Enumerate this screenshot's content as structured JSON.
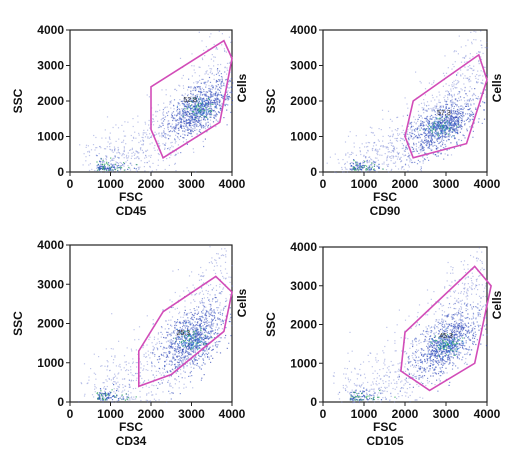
{
  "chart_data": [
    {
      "type": "scatter",
      "marker": "CD45",
      "xlabel": "FSC",
      "ylabel": "SSC",
      "gate_label": "Cells",
      "gate_percent": "52.8",
      "xlim": [
        0,
        4000
      ],
      "ylim": [
        0,
        4000
      ],
      "xticks": [
        "0",
        "1000",
        "2000",
        "3000",
        "4000"
      ],
      "yticks": [
        "0",
        "1000",
        "2000",
        "3000",
        "4000"
      ],
      "gate_polygon": [
        [
          2000,
          1200
        ],
        [
          2000,
          2400
        ],
        [
          3800,
          3700
        ],
        [
          4000,
          3200
        ],
        [
          3700,
          1400
        ],
        [
          2300,
          400
        ]
      ],
      "cluster": {
        "cx": 3200,
        "cy": 1800,
        "spread": 1.0
      }
    },
    {
      "type": "scatter",
      "marker": "CD90",
      "xlabel": "FSC",
      "ylabel": "SSC",
      "gate_label": "Cells",
      "gate_percent": "57.3",
      "xlim": [
        0,
        4000
      ],
      "ylim": [
        0,
        4000
      ],
      "xticks": [
        "0",
        "1000",
        "2000",
        "3000",
        "4000"
      ],
      "yticks": [
        "0",
        "1000",
        "2000",
        "3000",
        "4000"
      ],
      "gate_polygon": [
        [
          2000,
          1000
        ],
        [
          2200,
          2000
        ],
        [
          3800,
          3300
        ],
        [
          4000,
          2600
        ],
        [
          3500,
          800
        ],
        [
          2200,
          400
        ]
      ],
      "cluster": {
        "cx": 2900,
        "cy": 1300,
        "spread": 1.0
      }
    },
    {
      "type": "scatter",
      "marker": "CD34",
      "xlabel": "FSC",
      "ylabel": "SSC",
      "gate_label": "Cells",
      "gate_percent": "25.3",
      "xlim": [
        0,
        4000
      ],
      "ylim": [
        0,
        4000
      ],
      "xticks": [
        "0",
        "1000",
        "2000",
        "3000",
        "4000"
      ],
      "yticks": [
        "0",
        "1000",
        "2000",
        "3000",
        "4000"
      ],
      "gate_polygon": [
        [
          1700,
          400
        ],
        [
          1700,
          1300
        ],
        [
          2300,
          2300
        ],
        [
          3600,
          3200
        ],
        [
          4000,
          2800
        ],
        [
          3800,
          1800
        ],
        [
          2500,
          700
        ]
      ],
      "cluster": {
        "cx": 3000,
        "cy": 1600,
        "spread": 1.2
      }
    },
    {
      "type": "scatter",
      "marker": "CD105",
      "xlabel": "FSC",
      "ylabel": "SSC",
      "gate_label": "Cells",
      "gate_percent": "45.3",
      "xlim": [
        0,
        4000
      ],
      "ylim": [
        0,
        4000
      ],
      "xticks": [
        "0",
        "1000",
        "2000",
        "3000",
        "4000"
      ],
      "yticks": [
        "0",
        "1000",
        "2000",
        "3000",
        "4000"
      ],
      "gate_polygon": [
        [
          1900,
          800
        ],
        [
          2000,
          1800
        ],
        [
          3700,
          3500
        ],
        [
          4100,
          3000
        ],
        [
          3700,
          1000
        ],
        [
          2600,
          300
        ]
      ],
      "cluster": {
        "cx": 3000,
        "cy": 1500,
        "spread": 1.1
      }
    }
  ]
}
